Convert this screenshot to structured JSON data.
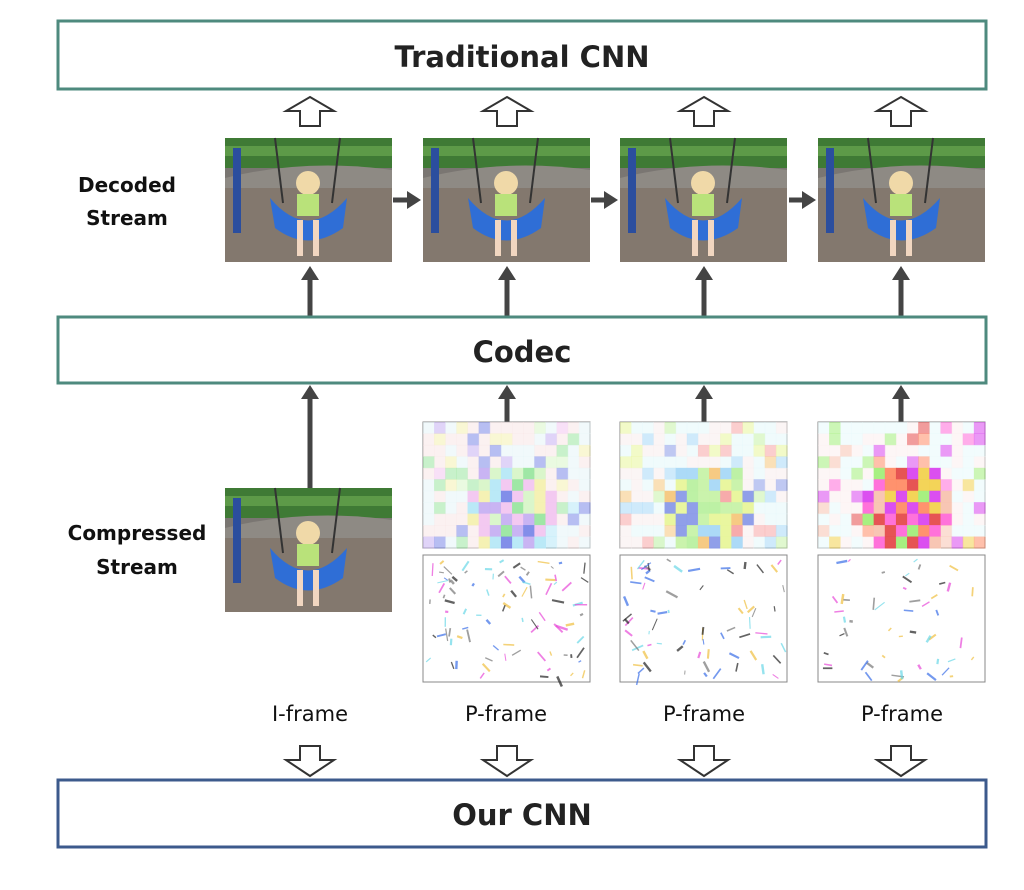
{
  "boxes": {
    "traditional_cnn": "Traditional CNN",
    "codec": "Codec",
    "our_cnn": "Our CNN"
  },
  "labels": {
    "decoded_line1": "Decoded",
    "decoded_line2": "Stream",
    "compressed_line1": "Compressed",
    "compressed_line2": "Stream"
  },
  "frame_types": [
    "I-frame",
    "P-frame",
    "P-frame",
    "P-frame"
  ],
  "colors": {
    "teal_border": "#4e8a7e",
    "blue_border": "#3c5a8c",
    "arrow": "#444444"
  }
}
